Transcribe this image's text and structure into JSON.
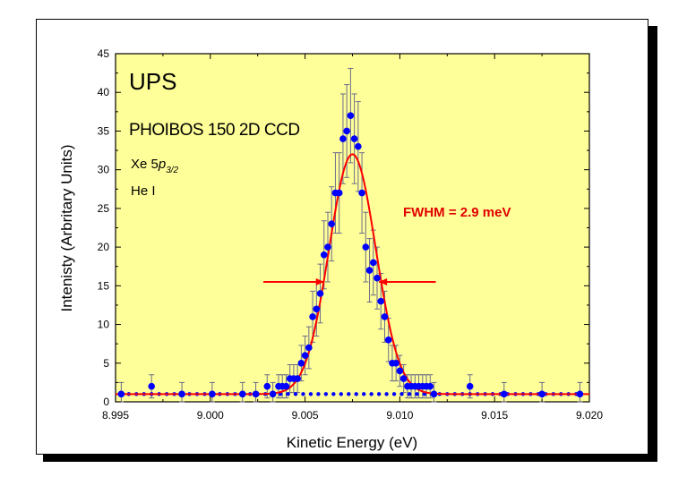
{
  "chart_data": {
    "type": "scatter",
    "xlabel": "Kinetic Energy (eV)",
    "ylabel": "Intenisty (Arbritary Units)",
    "xlim": [
      8.995,
      9.02
    ],
    "ylim": [
      0,
      45
    ],
    "x_ticks": [
      "8.995",
      "9.000",
      "9.005",
      "9.010",
      "9.015",
      "9.020"
    ],
    "y_ticks": [
      "0",
      "5",
      "10",
      "15",
      "20",
      "25",
      "30",
      "35",
      "40",
      "45"
    ],
    "grid": false,
    "background_color": "#ffff99",
    "annotations": {
      "title": "UPS",
      "instrument": "PHOIBOS 150 2D CCD",
      "line_element": "Xe 5",
      "line_orbital": "p",
      "line_subscript": "3/2",
      "source": "He I",
      "fwhm": "FWHM = 2.9 meV"
    },
    "series": [
      {
        "kind": "data",
        "color": "#0000ff",
        "x": [
          8.9953,
          8.9969,
          8.9985,
          9.0001,
          9.0017,
          9.0024,
          9.003,
          9.0033,
          9.0036,
          9.0038,
          9.004,
          9.0042,
          9.0044,
          9.0046,
          9.0048,
          9.005,
          9.0052,
          9.0054,
          9.0056,
          9.0058,
          9.006,
          9.0062,
          9.0064,
          9.0066,
          9.0068,
          9.007,
          9.0072,
          9.0074,
          9.0076,
          9.0078,
          9.008,
          9.0082,
          9.0084,
          9.0086,
          9.0088,
          9.009,
          9.0092,
          9.0094,
          9.0096,
          9.0098,
          9.01,
          9.0102,
          9.0104,
          9.0106,
          9.0108,
          9.011,
          9.0112,
          9.0114,
          9.0116,
          9.0118,
          9.0137,
          9.0155,
          9.0175,
          9.0195
        ],
        "y": [
          1,
          2,
          1,
          1,
          1,
          1,
          2,
          1,
          2,
          2,
          2,
          3,
          3,
          3,
          5,
          6,
          7,
          11,
          12,
          14,
          19,
          20,
          23,
          27,
          27,
          34,
          35,
          37,
          34,
          33,
          27,
          20,
          17,
          18,
          16,
          13,
          11,
          8,
          5,
          5,
          4,
          3,
          2,
          2,
          2,
          2,
          2,
          2,
          2,
          1,
          2,
          1,
          1,
          1
        ],
        "err": [
          1.5,
          1.5,
          1.5,
          1.5,
          1.5,
          1.5,
          1.5,
          1.5,
          1.5,
          1.5,
          1.5,
          1.8,
          1.8,
          1.8,
          2.3,
          2.5,
          2.7,
          3.3,
          3.5,
          3.8,
          4.4,
          4.5,
          4.8,
          5.2,
          5.2,
          5.8,
          6.0,
          6.1,
          5.8,
          5.8,
          5.2,
          4.5,
          4.1,
          4.2,
          4.0,
          3.6,
          3.3,
          2.8,
          2.3,
          2.3,
          2.0,
          1.8,
          1.5,
          1.5,
          1.5,
          1.5,
          1.5,
          1.5,
          1.5,
          1.5,
          1.5,
          1.5,
          1.5,
          1.5
        ]
      },
      {
        "kind": "fit",
        "color": "#ff0000",
        "shape": "gaussian",
        "center": 9.0075,
        "amplitude": 31,
        "baseline": 1,
        "fwhm": 0.0029
      }
    ],
    "fwhm_arrows": {
      "color": "#ff0000",
      "y": 15.5,
      "left": {
        "from": 9.0028,
        "to": 9.006
      },
      "right": {
        "from": 9.0119,
        "to": 9.0089
      }
    }
  }
}
